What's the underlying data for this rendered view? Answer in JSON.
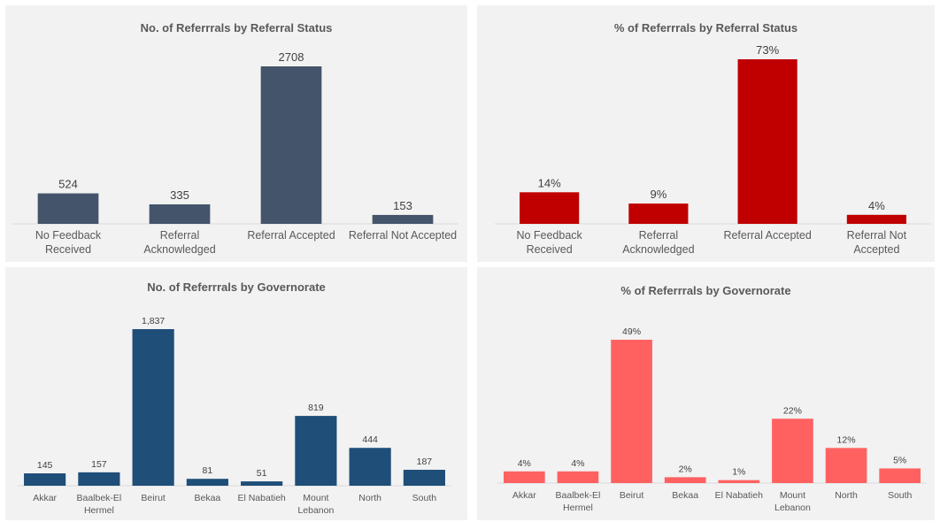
{
  "charts": [
    {
      "type": "bar",
      "title": "No. of Referrrals by Referral Status",
      "categories": [
        [
          "No Feedback",
          "Received"
        ],
        [
          "Referral",
          "Acknowledged"
        ],
        [
          "Referral Accepted"
        ],
        [
          "Referral Not Accepted"
        ]
      ],
      "values": [
        524,
        335,
        2708,
        153
      ],
      "labels": [
        "524",
        "335",
        "2708",
        "153"
      ],
      "color": "#44546a",
      "ylim": [
        0,
        2708
      ]
    },
    {
      "type": "bar",
      "title": "% of Referrrals by Referral Status",
      "categories": [
        [
          "No Feedback",
          "Received"
        ],
        [
          "Referral",
          "Acknowledged"
        ],
        [
          "Referral Accepted"
        ],
        [
          "Referral Not",
          "Accepted"
        ]
      ],
      "values": [
        14,
        9,
        73,
        4
      ],
      "labels": [
        "14%",
        "9%",
        "73%",
        "4%"
      ],
      "color": "#c00000",
      "ylim": [
        0,
        73
      ]
    },
    {
      "type": "bar",
      "title": "No. of Referrrals by Governorate",
      "categories": [
        [
          "Akkar"
        ],
        [
          "Baalbek-El",
          "Hermel"
        ],
        [
          "Beirut"
        ],
        [
          "Bekaa"
        ],
        [
          "El Nabatieh"
        ],
        [
          "Mount",
          "Lebanon"
        ],
        [
          "North"
        ],
        [
          "South"
        ]
      ],
      "values": [
        145,
        157,
        1837,
        81,
        51,
        819,
        444,
        187
      ],
      "labels": [
        "145",
        "157",
        "1,837",
        "81",
        "51",
        "819",
        "444",
        "187"
      ],
      "color": "#1f4e79",
      "ylim": [
        0,
        1837
      ]
    },
    {
      "type": "bar",
      "title": "% of Referrrals by Governorate",
      "categories": [
        [
          "Akkar"
        ],
        [
          "Baalbek-El",
          "Hermel"
        ],
        [
          "Beirut"
        ],
        [
          "Bekaa"
        ],
        [
          "El Nabatieh"
        ],
        [
          "Mount",
          "Lebanon"
        ],
        [
          "North"
        ],
        [
          "South"
        ]
      ],
      "values": [
        4,
        4,
        49,
        2,
        1,
        22,
        12,
        5
      ],
      "labels": [
        "4%",
        "4%",
        "49%",
        "2%",
        "1%",
        "22%",
        "12%",
        "5%"
      ],
      "color": "#ff6161",
      "ylim": [
        0,
        49
      ]
    }
  ],
  "chart_data": [
    {
      "type": "bar",
      "title": "No. of Referrrals by Referral Status",
      "categories": [
        "No Feedback Received",
        "Referral Acknowledged",
        "Referral Accepted",
        "Referral Not Accepted"
      ],
      "values": [
        524,
        335,
        2708,
        153
      ]
    },
    {
      "type": "bar",
      "title": "% of Referrrals by Referral Status",
      "categories": [
        "No Feedback Received",
        "Referral Acknowledged",
        "Referral Accepted",
        "Referral Not Accepted"
      ],
      "values": [
        14,
        9,
        73,
        4
      ],
      "unit": "%"
    },
    {
      "type": "bar",
      "title": "No. of Referrrals by Governorate",
      "categories": [
        "Akkar",
        "Baalbek-El Hermel",
        "Beirut",
        "Bekaa",
        "El Nabatieh",
        "Mount Lebanon",
        "North",
        "South"
      ],
      "values": [
        145,
        157,
        1837,
        81,
        51,
        819,
        444,
        187
      ]
    },
    {
      "type": "bar",
      "title": "% of Referrrals by Governorate",
      "categories": [
        "Akkar",
        "Baalbek-El Hermel",
        "Beirut",
        "Bekaa",
        "El Nabatieh",
        "Mount Lebanon",
        "North",
        "South"
      ],
      "values": [
        4,
        4,
        49,
        2,
        1,
        22,
        12,
        5
      ],
      "unit": "%"
    }
  ]
}
